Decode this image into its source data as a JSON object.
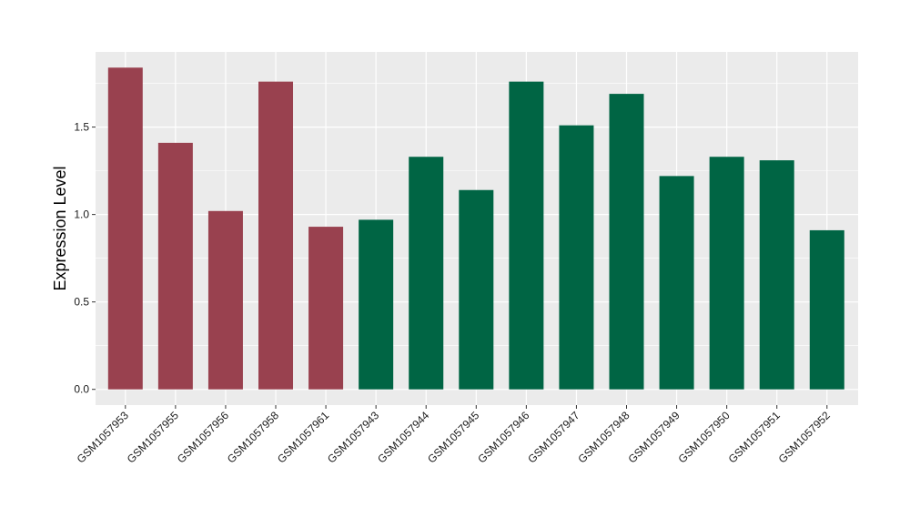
{
  "chart_data": {
    "type": "bar",
    "title": "",
    "xlabel": "",
    "ylabel": "Expression Level",
    "categories": [
      "GSM1057953",
      "GSM1057955",
      "GSM1057956",
      "GSM1057958",
      "GSM1057961",
      "GSM1057943",
      "GSM1057944",
      "GSM1057945",
      "GSM1057946",
      "GSM1057947",
      "GSM1057948",
      "GSM1057949",
      "GSM1057950",
      "GSM1057951",
      "GSM1057952"
    ],
    "values": [
      1.84,
      1.41,
      1.02,
      1.76,
      0.93,
      0.97,
      1.33,
      1.14,
      1.76,
      1.51,
      1.69,
      1.22,
      1.33,
      1.31,
      0.91
    ],
    "bar_colors": [
      "#99414f",
      "#99414f",
      "#99414f",
      "#99414f",
      "#99414f",
      "#006544",
      "#006544",
      "#006544",
      "#006544",
      "#006544",
      "#006544",
      "#006544",
      "#006544",
      "#006544",
      "#006544"
    ],
    "ylim": [
      -0.09,
      1.93
    ],
    "yticks": [
      0.0,
      0.5,
      1.0,
      1.5
    ],
    "ytick_labels": [
      "0.0",
      "0.5",
      "1.0",
      "1.5"
    ],
    "grid": true,
    "panel_background": "#ebebeb",
    "grid_color": "#ffffff",
    "legend": "none"
  }
}
